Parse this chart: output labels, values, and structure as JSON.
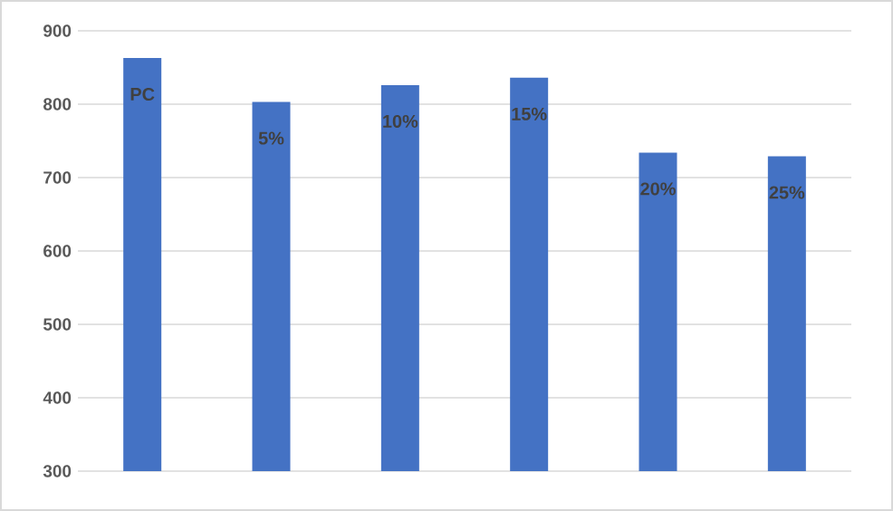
{
  "chart_data": {
    "type": "bar",
    "categories": [
      "PC",
      "5%",
      "10%",
      "15%",
      "20%",
      "25%"
    ],
    "values": [
      863,
      803,
      826,
      836,
      734,
      729
    ],
    "color": "#4472c4",
    "ylim": [
      300,
      900
    ],
    "yticks": [
      300,
      400,
      500,
      600,
      700,
      800,
      900
    ],
    "grid": "y",
    "tick_labels": "y"
  }
}
